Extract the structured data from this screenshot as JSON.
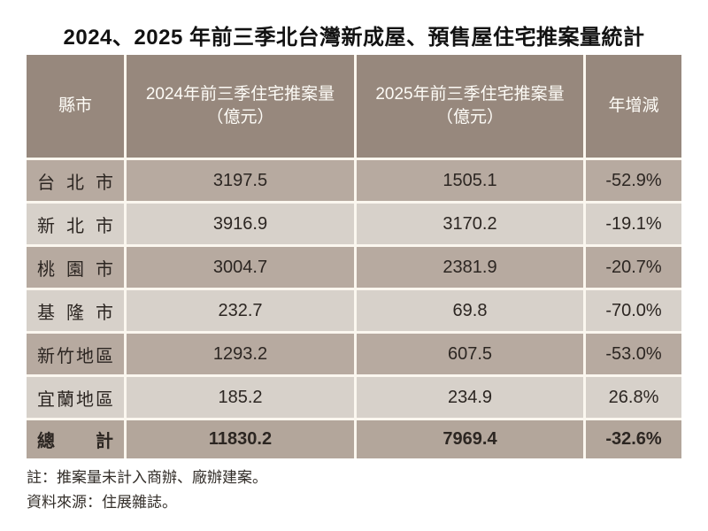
{
  "title": "2024、2025 年前三季北台灣新成屋、預售屋住宅推案量統計",
  "table": {
    "headers": {
      "city": "縣市",
      "y2024_line1": "2024年前三季住宅推案量",
      "y2024_line2": "（億元）",
      "y2025_line1": "2025年前三季住宅推案量",
      "y2025_line2": "（億元）",
      "yoy": "年增減"
    },
    "rows": [
      {
        "city": "台 北 市",
        "y2024": "3197.5",
        "y2025": "1505.1",
        "yoy": "-52.9%"
      },
      {
        "city": "新 北 市",
        "y2024": "3916.9",
        "y2025": "3170.2",
        "yoy": "-19.1%"
      },
      {
        "city": "桃 園 市",
        "y2024": "3004.7",
        "y2025": "2381.9",
        "yoy": "-20.7%"
      },
      {
        "city": "基 隆 市",
        "y2024": "232.7",
        "y2025": "69.8",
        "yoy": "-70.0%"
      },
      {
        "city": "新竹地區",
        "y2024": "1293.2",
        "y2025": "607.5",
        "yoy": "-53.0%"
      },
      {
        "city": "宜蘭地區",
        "y2024": "185.2",
        "y2025": "234.9",
        "yoy": "26.8%"
      }
    ],
    "total": {
      "city": "總 計",
      "y2024": "11830.2",
      "y2025": "7969.4",
      "yoy": "-32.6%"
    }
  },
  "notes": {
    "note1": "註：推案量未計入商辦、廠辦建案。",
    "note2": "資料來源：住展雜誌。"
  },
  "colors": {
    "header_bg": "#97887d",
    "row_odd_bg": "#b7aaa0",
    "row_even_bg": "#d7d1ca",
    "total_row_bg": "#b3a69b",
    "separator": "#fbf7ef",
    "header_text": "#fdfbf6",
    "body_text": "#2c2622"
  },
  "chart_data": {
    "type": "table",
    "title": "2024、2025 年前三季北台灣新成屋、預售屋住宅推案量統計",
    "columns": [
      "縣市",
      "2024年前三季住宅推案量（億元）",
      "2025年前三季住宅推案量（億元）",
      "年增減"
    ],
    "rows": [
      [
        "台北市",
        3197.5,
        1505.1,
        "-52.9%"
      ],
      [
        "新北市",
        3916.9,
        3170.2,
        "-19.1%"
      ],
      [
        "桃園市",
        3004.7,
        2381.9,
        "-20.7%"
      ],
      [
        "基隆市",
        232.7,
        69.8,
        "-70.0%"
      ],
      [
        "新竹地區",
        1293.2,
        607.5,
        "-53.0%"
      ],
      [
        "宜蘭地區",
        185.2,
        234.9,
        "26.8%"
      ],
      [
        "總計",
        11830.2,
        7969.4,
        "-32.6%"
      ]
    ],
    "notes": [
      "註：推案量未計入商辦、廠辦建案。",
      "資料來源：住展雜誌。"
    ]
  }
}
